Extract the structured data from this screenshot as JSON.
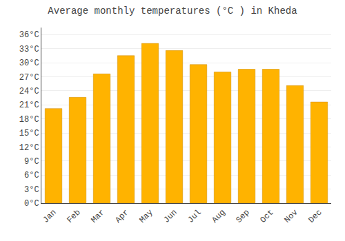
{
  "chart_data": {
    "type": "bar",
    "title": "Average monthly temperatures (°C ) in Kheda",
    "categories": [
      "Jan",
      "Feb",
      "Mar",
      "Apr",
      "May",
      "Jun",
      "Jul",
      "Aug",
      "Sep",
      "Oct",
      "Nov",
      "Dec"
    ],
    "values": [
      20.2,
      22.6,
      27.6,
      31.5,
      34.1,
      32.6,
      29.6,
      28.0,
      28.6,
      28.6,
      25.1,
      21.6
    ],
    "color": "#FFB300",
    "ylim": [
      0,
      37.5
    ],
    "yticks": [
      {
        "value": 0,
        "label": "0°C"
      },
      {
        "value": 3,
        "label": "3°C"
      },
      {
        "value": 6,
        "label": "6°C"
      },
      {
        "value": 9,
        "label": "9°C"
      },
      {
        "value": 12,
        "label": "12°C"
      },
      {
        "value": 15,
        "label": "15°C"
      },
      {
        "value": 18,
        "label": "18°C"
      },
      {
        "value": 21,
        "label": "21°C"
      },
      {
        "value": 24,
        "label": "24°C"
      },
      {
        "value": 27,
        "label": "27°C"
      },
      {
        "value": 30,
        "label": "30°C"
      },
      {
        "value": 33,
        "label": "33°C"
      },
      {
        "value": 36,
        "label": "36°C"
      }
    ],
    "grid": true
  }
}
